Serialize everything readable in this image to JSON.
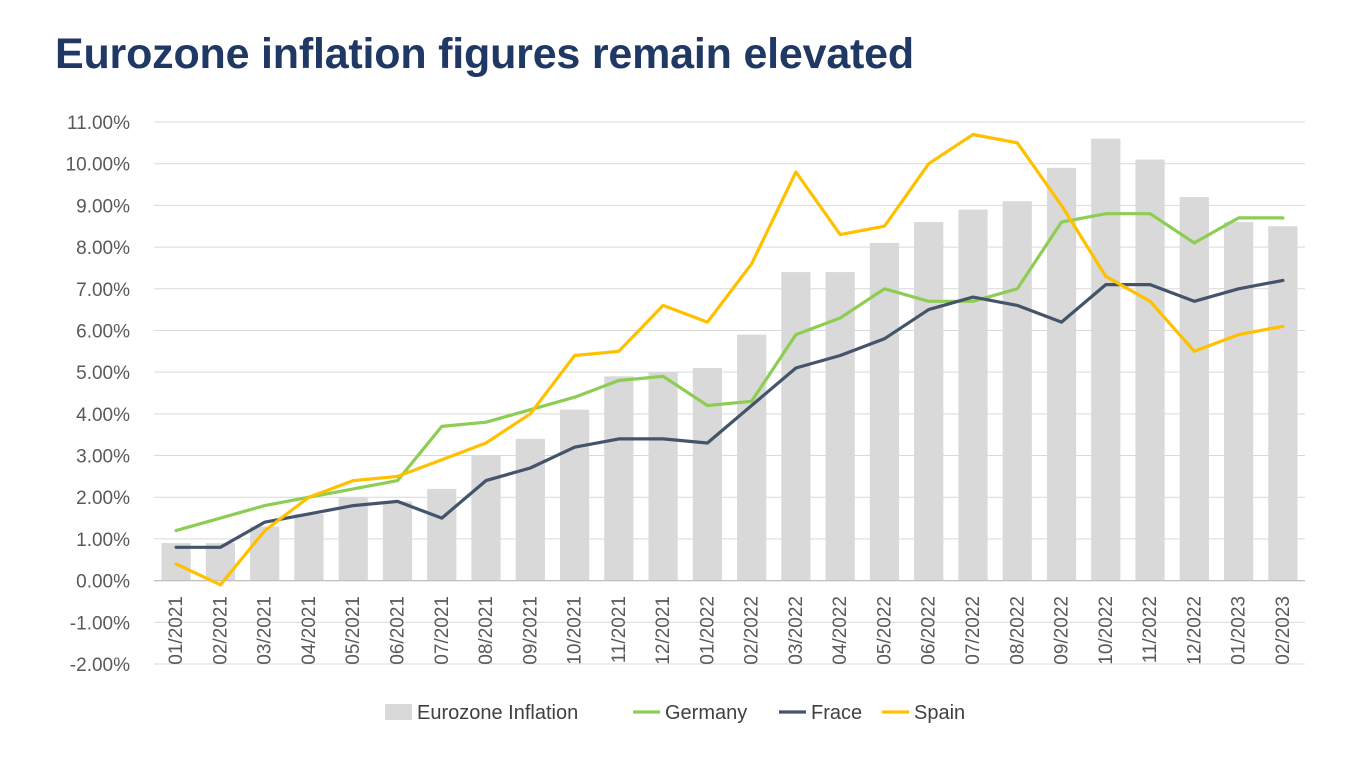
{
  "chart_data": {
    "type": "bar",
    "title": "Eurozone inflation figures remain elevated",
    "xlabel": "",
    "ylabel": "",
    "ylim": [
      -2,
      11
    ],
    "y_ticks": [
      "-2.00%",
      "-1.00%",
      "0.00%",
      "1.00%",
      "2.00%",
      "3.00%",
      "4.00%",
      "5.00%",
      "6.00%",
      "7.00%",
      "8.00%",
      "9.00%",
      "10.00%",
      "11.00%"
    ],
    "y_tick_values": [
      -2,
      -1,
      0,
      1,
      2,
      3,
      4,
      5,
      6,
      7,
      8,
      9,
      10,
      11
    ],
    "grid": true,
    "legend_position": "bottom",
    "categories": [
      "01/2021",
      "02/2021",
      "03/2021",
      "04/2021",
      "05/2021",
      "06/2021",
      "07/2021",
      "08/2021",
      "09/2021",
      "10/2021",
      "11/2021",
      "12/2021",
      "01/2022",
      "02/2022",
      "03/2022",
      "04/2022",
      "05/2022",
      "06/2022",
      "07/2022",
      "08/2022",
      "09/2022",
      "10/2022",
      "11/2022",
      "12/2022",
      "01/2023",
      "02/2023"
    ],
    "series": [
      {
        "name": "Eurozone Inflation",
        "kind": "bar",
        "color": "#d9d9d9",
        "values": [
          0.9,
          0.9,
          1.3,
          1.6,
          2.0,
          1.9,
          2.2,
          3.0,
          3.4,
          4.1,
          4.9,
          5.0,
          5.1,
          5.9,
          7.4,
          7.4,
          8.1,
          8.6,
          8.9,
          9.1,
          9.9,
          10.6,
          10.1,
          9.2,
          8.6,
          8.5
        ]
      },
      {
        "name": "Germany",
        "kind": "line",
        "color": "#8dcd54",
        "values": [
          1.2,
          1.5,
          1.8,
          2.0,
          2.2,
          2.4,
          3.7,
          3.8,
          4.1,
          4.4,
          4.8,
          4.9,
          4.2,
          4.3,
          5.9,
          6.3,
          7.0,
          6.7,
          6.7,
          7.0,
          8.6,
          8.8,
          8.8,
          8.1,
          8.7,
          8.7
        ]
      },
      {
        "name": "Frace",
        "kind": "line",
        "color": "#44546a",
        "values": [
          0.8,
          0.8,
          1.4,
          1.6,
          1.8,
          1.9,
          1.5,
          2.4,
          2.7,
          3.2,
          3.4,
          3.4,
          3.3,
          4.2,
          5.1,
          5.4,
          5.8,
          6.5,
          6.8,
          6.6,
          6.2,
          7.1,
          7.1,
          6.7,
          7.0,
          7.2
        ]
      },
      {
        "name": "Spain",
        "kind": "line",
        "color": "#ffc000",
        "values": [
          0.4,
          -0.1,
          1.2,
          2.0,
          2.4,
          2.5,
          2.9,
          3.3,
          4.0,
          5.4,
          5.5,
          6.6,
          6.2,
          7.6,
          9.8,
          8.3,
          8.5,
          10.0,
          10.7,
          10.5,
          9.0,
          7.3,
          6.7,
          5.5,
          5.9,
          6.1
        ]
      }
    ]
  }
}
